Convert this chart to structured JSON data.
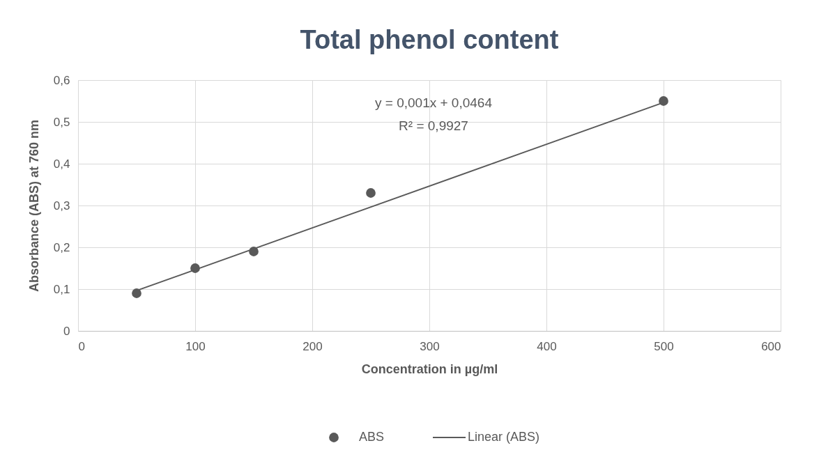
{
  "chart_data": {
    "type": "scatter",
    "title": "Total phenol content",
    "xlabel": "Concentration in µg/ml",
    "ylabel": "Absorbance (ABS) at 760 nm",
    "x": [
      50,
      100,
      150,
      250,
      500
    ],
    "series": [
      {
        "name": "ABS",
        "color": "#595959",
        "values": [
          0.09,
          0.15,
          0.19,
          0.33,
          0.55
        ],
        "marker": "circle"
      },
      {
        "name": "Linear (ABS)",
        "type": "line",
        "color": "#595959",
        "x": [
          50,
          500
        ],
        "values": [
          0.0964,
          0.5464
        ],
        "line_style": "solid"
      }
    ],
    "annotations": [
      "y = 0,001x + 0,0464",
      "R² = 0,9927"
    ],
    "xlim": [
      0,
      600
    ],
    "xticks": [
      0,
      100,
      200,
      300,
      400,
      500,
      600
    ],
    "ylim": [
      0,
      0.6
    ],
    "yticks": [
      0,
      {
        "value": 0.1,
        "label": "0,1"
      },
      {
        "value": 0.2,
        "label": "0,2"
      },
      {
        "value": 0.3,
        "label": "0,3"
      },
      {
        "value": 0.4,
        "label": "0,4"
      },
      {
        "value": 0.5,
        "label": "0,5"
      },
      {
        "value": 0.6,
        "label": "0,6"
      }
    ],
    "grid": true,
    "legend": "bottom"
  }
}
